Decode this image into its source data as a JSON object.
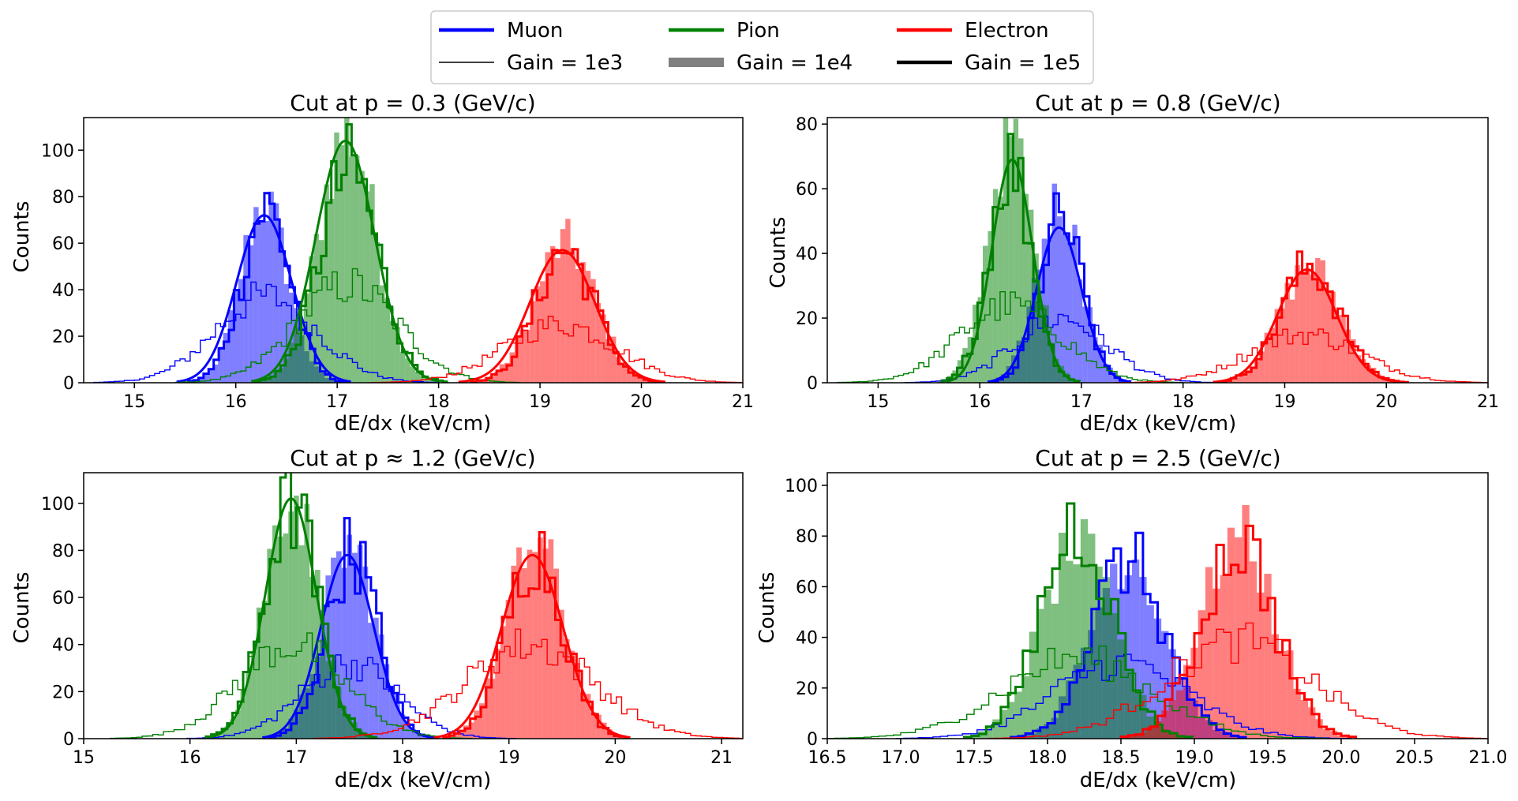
{
  "colors": {
    "muon": "#0000ff",
    "pion": "#008000",
    "electron": "#ff0000"
  },
  "legend": {
    "placement": "top-center",
    "entries": [
      {
        "label": "Muon",
        "kind": "thick-line",
        "color": "#0000ff"
      },
      {
        "label": "Pion",
        "kind": "thick-line",
        "color": "#008000"
      },
      {
        "label": "Electron",
        "kind": "thick-line",
        "color": "#ff0000"
      },
      {
        "label": "Gain = 1e3",
        "kind": "thin-line",
        "color": "#000000"
      },
      {
        "label": "Gain = 1e4",
        "kind": "filled-bar",
        "color": "#808080"
      },
      {
        "label": "Gain = 1e5",
        "kind": "thick-line",
        "color": "#000000"
      }
    ]
  },
  "chart_data": [
    {
      "type": "histogram",
      "title": "Cut at p = 0.3 (GeV/c)",
      "xlabel": "dE/dx (keV/cm)",
      "ylabel": "Counts",
      "xlim": [
        14.5,
        21
      ],
      "ylim": [
        0,
        114
      ],
      "xticks": [
        "15",
        "16",
        "17",
        "18",
        "19",
        "20",
        "21"
      ],
      "yticks": [
        "0",
        "20",
        "40",
        "60",
        "80",
        "100"
      ],
      "series": [
        {
          "name": "Muon",
          "color": "#0000ff",
          "gain_1e3": {
            "mean": 16.3,
            "sigma": 0.5,
            "peak": 37
          },
          "gain_1e4": {
            "mean": 16.28,
            "sigma": 0.23,
            "peak": 78
          },
          "gain_1e5": {
            "mean": 16.3,
            "sigma": 0.24,
            "peak": 75
          },
          "fit": {
            "mean": 16.28,
            "sigma": 0.27,
            "amplitude": 72
          }
        },
        {
          "name": "Pion",
          "color": "#008000",
          "gain_1e3": {
            "mean": 17.1,
            "sigma": 0.5,
            "peak": 42
          },
          "gain_1e4": {
            "mean": 17.1,
            "sigma": 0.28,
            "peak": 108
          },
          "gain_1e5": {
            "mean": 17.12,
            "sigma": 0.29,
            "peak": 92
          },
          "fit": {
            "mean": 17.08,
            "sigma": 0.29,
            "amplitude": 104
          }
        },
        {
          "name": "Electron",
          "color": "#ff0000",
          "gain_1e3": {
            "mean": 19.2,
            "sigma": 0.55,
            "peak": 25
          },
          "gain_1e4": {
            "mean": 19.25,
            "sigma": 0.3,
            "peak": 60
          },
          "gain_1e5": {
            "mean": 19.25,
            "sigma": 0.29,
            "peak": 57
          },
          "fit": {
            "mean": 19.22,
            "sigma": 0.32,
            "amplitude": 57
          }
        }
      ]
    },
    {
      "type": "histogram",
      "title": "Cut at p = 0.8 (GeV/c)",
      "xlabel": "dE/dx (keV/cm)",
      "ylabel": "Counts",
      "xlim": [
        14.5,
        21
      ],
      "ylim": [
        0,
        82
      ],
      "xticks": [
        "15",
        "16",
        "17",
        "18",
        "19",
        "20",
        "21"
      ],
      "yticks": [
        "0",
        "20",
        "40",
        "60",
        "80"
      ],
      "series": [
        {
          "name": "Muon",
          "color": "#0000ff",
          "gain_1e3": {
            "mean": 16.8,
            "sigma": 0.45,
            "peak": 20
          },
          "gain_1e4": {
            "mean": 16.78,
            "sigma": 0.22,
            "peak": 56
          },
          "gain_1e5": {
            "mean": 16.8,
            "sigma": 0.21,
            "peak": 50
          },
          "fit": {
            "mean": 16.78,
            "sigma": 0.22,
            "amplitude": 48
          }
        },
        {
          "name": "Pion",
          "color": "#008000",
          "gain_1e3": {
            "mean": 16.3,
            "sigma": 0.5,
            "peak": 24
          },
          "gain_1e4": {
            "mean": 16.3,
            "sigma": 0.22,
            "peak": 76
          },
          "gain_1e5": {
            "mean": 16.3,
            "sigma": 0.21,
            "peak": 68
          },
          "fit": {
            "mean": 16.32,
            "sigma": 0.2,
            "amplitude": 69
          }
        },
        {
          "name": "Electron",
          "color": "#ff0000",
          "gain_1e3": {
            "mean": 19.2,
            "sigma": 0.55,
            "peak": 15
          },
          "gain_1e4": {
            "mean": 19.25,
            "sigma": 0.3,
            "peak": 36
          },
          "gain_1e5": {
            "mean": 19.25,
            "sigma": 0.29,
            "peak": 36
          },
          "fit": {
            "mean": 19.22,
            "sigma": 0.29,
            "amplitude": 35
          }
        }
      ]
    },
    {
      "type": "histogram",
      "title": "Cut at p ≈ 1.2 (GeV/c)",
      "xlabel": "dE/dx (keV/cm)",
      "ylabel": "Counts",
      "xlim": [
        15,
        21.2
      ],
      "ylim": [
        0,
        113
      ],
      "xticks": [
        "15",
        "16",
        "17",
        "18",
        "19",
        "20",
        "21"
      ],
      "yticks": [
        "0",
        "20",
        "40",
        "60",
        "80",
        "100"
      ],
      "series": [
        {
          "name": "Muon",
          "color": "#0000ff",
          "gain_1e3": {
            "mean": 17.5,
            "sigma": 0.45,
            "peak": 32
          },
          "gain_1e4": {
            "mean": 17.5,
            "sigma": 0.25,
            "peak": 82
          },
          "gain_1e5": {
            "mean": 17.52,
            "sigma": 0.24,
            "peak": 80
          },
          "fit": {
            "mean": 17.48,
            "sigma": 0.25,
            "amplitude": 78
          }
        },
        {
          "name": "Pion",
          "color": "#008000",
          "gain_1e3": {
            "mean": 16.95,
            "sigma": 0.5,
            "peak": 40
          },
          "gain_1e4": {
            "mean": 16.95,
            "sigma": 0.25,
            "peak": 105
          },
          "gain_1e5": {
            "mean": 16.95,
            "sigma": 0.25,
            "peak": 100
          },
          "fit": {
            "mean": 16.95,
            "sigma": 0.24,
            "amplitude": 102
          }
        },
        {
          "name": "Electron",
          "color": "#ff0000",
          "gain_1e3": {
            "mean": 19.2,
            "sigma": 0.6,
            "peak": 40
          },
          "gain_1e4": {
            "mean": 19.25,
            "sigma": 0.28,
            "peak": 83
          },
          "gain_1e5": {
            "mean": 19.25,
            "sigma": 0.27,
            "peak": 80
          },
          "fit": {
            "mean": 19.22,
            "sigma": 0.29,
            "amplitude": 78
          }
        }
      ]
    },
    {
      "type": "histogram",
      "title": "Cut at p = 2.5 (GeV/c)",
      "xlabel": "dE/dx (keV/cm)",
      "ylabel": "Counts",
      "xlim": [
        16.5,
        21.0
      ],
      "ylim": [
        0,
        105
      ],
      "xticks": [
        "16.5",
        "17.0",
        "17.5",
        "18.0",
        "18.5",
        "19.0",
        "19.5",
        "20.0",
        "20.5",
        "21.0"
      ],
      "yticks": [
        "0",
        "20",
        "40",
        "60",
        "80",
        "100"
      ],
      "series": [
        {
          "name": "Muon",
          "color": "#0000ff",
          "gain_1e3": {
            "mean": 18.5,
            "sigma": 0.45,
            "peak": 30
          },
          "gain_1e4": {
            "mean": 18.55,
            "sigma": 0.25,
            "peak": 73
          },
          "gain_1e5": {
            "mean": 18.55,
            "sigma": 0.25,
            "peak": 70
          }
        },
        {
          "name": "Pion",
          "color": "#008000",
          "gain_1e3": {
            "mean": 18.2,
            "sigma": 0.5,
            "peak": 32
          },
          "gain_1e4": {
            "mean": 18.2,
            "sigma": 0.25,
            "peak": 75
          },
          "gain_1e5": {
            "mean": 18.2,
            "sigma": 0.24,
            "peak": 85
          }
        },
        {
          "name": "Electron",
          "color": "#ff0000",
          "gain_1e3": {
            "mean": 19.3,
            "sigma": 0.5,
            "peak": 38
          },
          "gain_1e4": {
            "mean": 19.3,
            "sigma": 0.25,
            "peak": 80
          },
          "gain_1e5": {
            "mean": 19.3,
            "sigma": 0.25,
            "peak": 78
          }
        }
      ]
    }
  ]
}
